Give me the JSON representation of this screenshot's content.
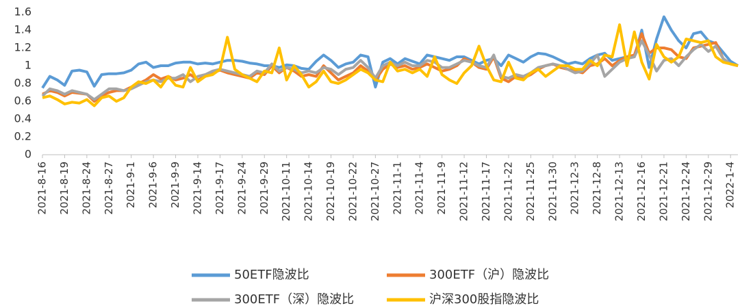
{
  "chart_data": {
    "type": "line",
    "categories": [
      "2021-8-16",
      null,
      null,
      "2021-8-19",
      null,
      null,
      "2021-8-24",
      null,
      null,
      "2021-8-27",
      null,
      null,
      "2021-9-1",
      null,
      null,
      "2021-9-6",
      null,
      null,
      "2021-9-9",
      null,
      null,
      "2021-9-14",
      null,
      null,
      "2021-9-17",
      null,
      null,
      "2021-9-24",
      null,
      null,
      "2021-9-29",
      null,
      null,
      "2021-10-11",
      null,
      null,
      "2021-10-14",
      null,
      null,
      "2021-10-19",
      null,
      null,
      "2021-10-22",
      null,
      null,
      "2021-10-27",
      null,
      null,
      "2021-11-1",
      null,
      null,
      "2021-11-4",
      null,
      null,
      "2021-11-9",
      null,
      null,
      "2021-11-12",
      null,
      null,
      "2021-11-17",
      null,
      null,
      "2021-11-22",
      null,
      null,
      "2021-11-25",
      null,
      null,
      "2021-11-30",
      null,
      null,
      "2021-12-3",
      null,
      null,
      "2021-12-8",
      null,
      null,
      "2021-12-13",
      null,
      null,
      "2021-12-16",
      null,
      null,
      "2021-12-21",
      null,
      null,
      "2021-12-24",
      null,
      null,
      "2021-12-29",
      null,
      null,
      "2022-1-4",
      null
    ],
    "series": [
      {
        "name": "50ETF隐波比",
        "color": "#5b9bd5",
        "values": [
          0.75,
          0.88,
          0.84,
          0.78,
          0.94,
          0.95,
          0.93,
          0.77,
          0.9,
          0.91,
          0.91,
          0.92,
          0.95,
          1.02,
          1.04,
          0.98,
          1.0,
          1.0,
          1.03,
          1.04,
          1.04,
          1.02,
          1.03,
          1.02,
          1.04,
          1.06,
          1.06,
          1.05,
          1.03,
          1.02,
          1.0,
          1.0,
          0.98,
          1.01,
          1.0,
          0.97,
          0.96,
          1.05,
          1.12,
          1.06,
          0.98,
          1.02,
          1.04,
          1.12,
          1.1,
          0.76,
          1.04,
          1.08,
          1.02,
          1.08,
          1.05,
          1.02,
          1.12,
          1.1,
          1.08,
          1.06,
          1.1,
          1.1,
          1.06,
          1.02,
          1.06,
          1.08,
          1.0,
          1.12,
          1.08,
          1.04,
          1.1,
          1.14,
          1.13,
          1.1,
          1.06,
          1.02,
          1.04,
          1.02,
          1.08,
          1.12,
          1.14,
          1.06,
          1.08,
          1.1,
          1.1,
          1.4,
          0.98,
          1.3,
          1.55,
          1.4,
          1.28,
          1.2,
          1.36,
          1.38,
          1.28,
          1.25,
          1.15,
          1.05,
          1.0
        ]
      },
      {
        "name": "300ETF（沪）隐波比",
        "color": "#ed7d31",
        "values": [
          0.68,
          0.72,
          0.7,
          0.66,
          0.7,
          0.69,
          0.68,
          0.6,
          0.66,
          0.7,
          0.72,
          0.72,
          0.76,
          0.8,
          0.84,
          0.9,
          0.85,
          0.88,
          0.84,
          0.86,
          0.9,
          0.84,
          0.88,
          0.92,
          0.95,
          0.92,
          0.9,
          0.88,
          0.86,
          0.92,
          0.9,
          1.0,
          0.92,
          0.98,
          0.94,
          0.88,
          0.9,
          0.88,
          1.0,
          0.92,
          0.84,
          0.88,
          0.92,
          1.0,
          0.94,
          0.84,
          0.96,
          1.02,
          0.98,
          1.0,
          0.96,
          0.98,
          1.02,
          0.98,
          0.94,
          0.96,
          1.0,
          1.08,
          1.04,
          0.98,
          0.96,
          1.1,
          0.86,
          0.82,
          0.88,
          0.86,
          0.9,
          0.96,
          1.0,
          1.02,
          0.98,
          0.96,
          0.94,
          0.92,
          1.0,
          1.02,
          1.08,
          1.0,
          1.06,
          1.1,
          1.12,
          1.36,
          1.14,
          1.2,
          1.2,
          1.18,
          1.1,
          1.08,
          1.2,
          1.22,
          1.24,
          1.26,
          1.08,
          1.02,
          1.0
        ]
      },
      {
        "name": "300ETF（深）隐波比",
        "color": "#a5a5a5",
        "values": [
          0.66,
          0.74,
          0.72,
          0.68,
          0.72,
          0.7,
          0.68,
          0.62,
          0.68,
          0.74,
          0.74,
          0.72,
          0.74,
          0.78,
          0.82,
          0.84,
          0.82,
          0.86,
          0.86,
          0.9,
          0.82,
          0.88,
          0.9,
          0.94,
          0.96,
          0.94,
          0.92,
          0.9,
          0.88,
          0.94,
          0.92,
          1.02,
          0.94,
          0.98,
          0.96,
          0.92,
          0.94,
          0.92,
          0.98,
          0.96,
          0.9,
          0.96,
          0.98,
          1.06,
          0.98,
          0.86,
          1.0,
          1.04,
          1.0,
          1.04,
          1.0,
          1.0,
          1.06,
          1.04,
          0.98,
          0.98,
          1.02,
          1.06,
          1.04,
          1.0,
          0.98,
          1.12,
          0.88,
          0.86,
          0.9,
          0.88,
          0.92,
          0.98,
          1.0,
          1.02,
          1.0,
          0.96,
          0.92,
          0.94,
          1.02,
          1.12,
          0.88,
          0.96,
          1.04,
          1.08,
          1.1,
          1.28,
          1.12,
          0.94,
          1.06,
          1.08,
          1.0,
          1.1,
          1.18,
          1.24,
          1.16,
          1.22,
          1.08,
          1.02,
          1.0
        ]
      },
      {
        "name": "沪深300股指隐波比",
        "color": "#ffc000",
        "values": [
          0.64,
          0.66,
          0.62,
          0.57,
          0.59,
          0.58,
          0.62,
          0.55,
          0.64,
          0.66,
          0.6,
          0.64,
          0.76,
          0.82,
          0.8,
          0.84,
          0.76,
          0.88,
          0.78,
          0.76,
          0.98,
          0.82,
          0.88,
          0.9,
          0.96,
          1.32,
          0.96,
          0.9,
          0.86,
          0.82,
          0.94,
          0.92,
          1.2,
          0.84,
          1.0,
          0.9,
          0.76,
          0.82,
          0.94,
          0.82,
          0.8,
          0.84,
          0.9,
          0.96,
          0.92,
          0.84,
          0.82,
          1.04,
          0.94,
          0.96,
          0.92,
          0.96,
          0.88,
          1.1,
          0.9,
          0.84,
          0.8,
          0.92,
          1.0,
          1.22,
          1.0,
          0.84,
          0.82,
          1.04,
          0.86,
          0.84,
          0.92,
          0.96,
          0.88,
          0.94,
          1.0,
          1.0,
          0.96,
          0.96,
          1.06,
          1.0,
          1.12,
          1.1,
          1.46,
          1.0,
          1.38,
          1.04,
          0.85,
          1.24,
          1.1,
          1.04,
          1.1,
          1.3,
          1.28,
          1.26,
          1.28,
          1.1,
          1.04,
          1.02,
          1.0
        ]
      }
    ],
    "ylim": [
      0,
      1.6
    ],
    "yticks": [
      0,
      0.2,
      0.4,
      0.6,
      0.8,
      1,
      1.2,
      1.4,
      1.6
    ],
    "grid": false,
    "legend": "bottom"
  }
}
